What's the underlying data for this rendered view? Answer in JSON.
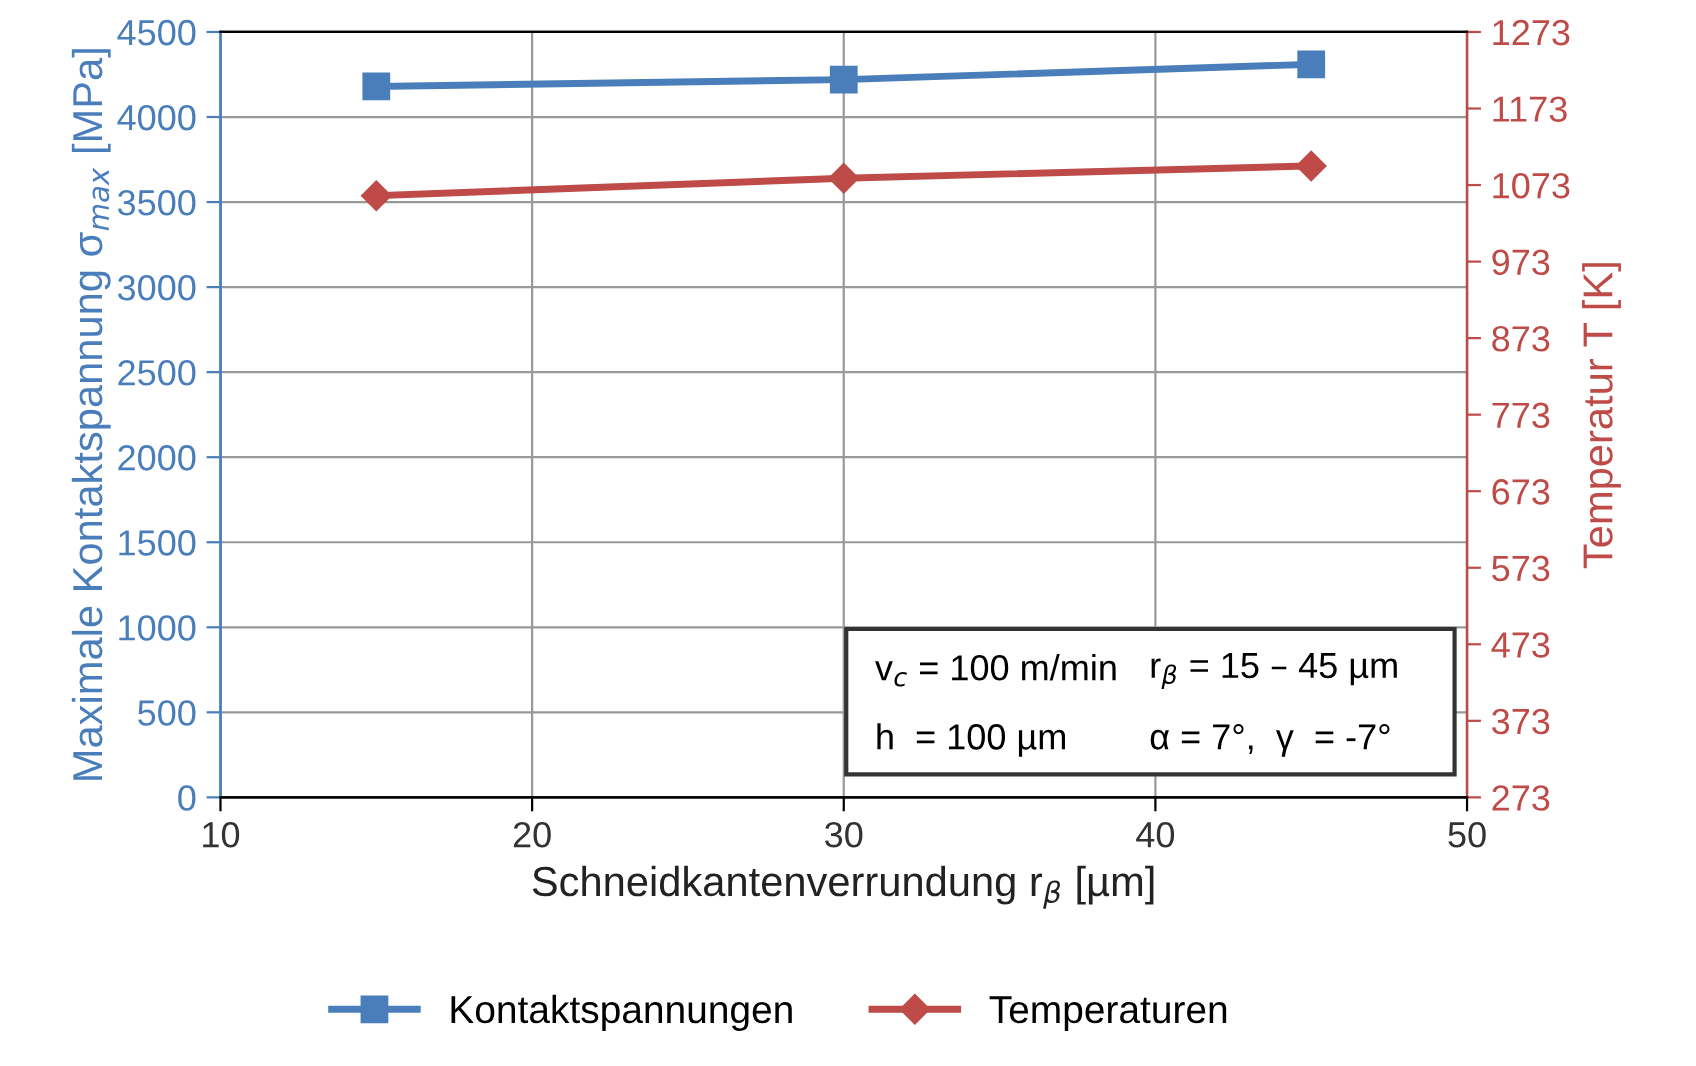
{
  "chart_data": {
    "type": "line",
    "xlabel": "Schneidkantenverrundung r$_{β}$ [µm]",
    "ylabel": "Maximale Kontaktspannung σ$_{max}$ [MPa]",
    "y2label": "Temperatur T [K]",
    "x": [
      15,
      30,
      45
    ],
    "series": [
      {
        "name": "Kontaktspannungen",
        "color": "#4a7ebb",
        "marker": "square",
        "values": [
          4180,
          4220,
          4310
        ]
      },
      {
        "name": "Temperaturen",
        "color": "#be4b48",
        "marker": "diamond",
        "axis": "y2",
        "values": [
          1059,
          1082,
          1098
        ]
      }
    ],
    "xlim": [
      10,
      50
    ],
    "xticks": [
      10,
      20,
      30,
      40,
      50
    ],
    "ylim": [
      0,
      4500
    ],
    "yticks": [
      0,
      500,
      1000,
      1500,
      2000,
      2500,
      3000,
      3500,
      4000,
      4500
    ],
    "y2lim": [
      273,
      1273
    ],
    "y2ticks": [
      273,
      373,
      473,
      573,
      673,
      773,
      873,
      973,
      1073,
      1173,
      1273
    ],
    "grid": true,
    "legend": "bottom",
    "annotations": [
      "v$_{c}$ = 100 m/min",
      "r$_{β}$ = 15 – 45 µm",
      "h  = 100 µm",
      "α = 7°,  γ  = -7°"
    ]
  }
}
